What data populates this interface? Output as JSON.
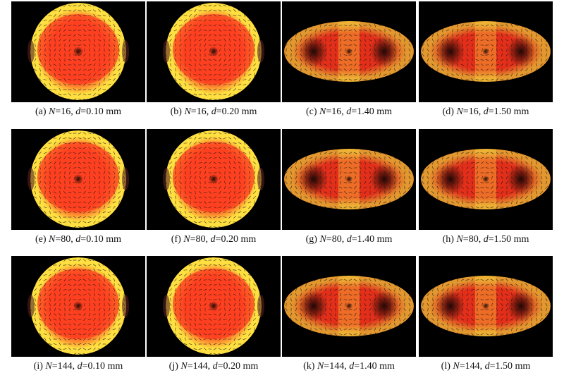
{
  "figure": {
    "rows": [
      {
        "panels": [
          {
            "label": "(a)",
            "N": "16",
            "d": "0.10",
            "unit": "mm",
            "shape": "circle"
          },
          {
            "label": "(b)",
            "N": "16",
            "d": "0.20",
            "unit": "mm",
            "shape": "circle"
          },
          {
            "label": "(c)",
            "N": "16",
            "d": "1.40",
            "unit": "mm",
            "shape": "ellipse"
          },
          {
            "label": "(d)",
            "N": "16",
            "d": "1.50",
            "unit": "mm",
            "shape": "ellipse"
          }
        ]
      },
      {
        "panels": [
          {
            "label": "(e)",
            "N": "80",
            "d": "0.10",
            "unit": "mm",
            "shape": "circle"
          },
          {
            "label": "(f)",
            "N": "80",
            "d": "0.20",
            "unit": "mm",
            "shape": "circle"
          },
          {
            "label": "(g)",
            "N": "80",
            "d": "1.40",
            "unit": "mm",
            "shape": "ellipse"
          },
          {
            "label": "(h)",
            "N": "80",
            "d": "1.50",
            "unit": "mm",
            "shape": "ellipse"
          }
        ]
      },
      {
        "panels": [
          {
            "label": "(i)",
            "N": "144",
            "d": "0.10",
            "unit": "mm",
            "shape": "circle"
          },
          {
            "label": "(j)",
            "N": "144",
            "d": "0.20",
            "unit": "mm",
            "shape": "circle"
          },
          {
            "label": "(k)",
            "N": "144",
            "d": "1.40",
            "unit": "mm",
            "shape": "ellipse"
          },
          {
            "label": "(l)",
            "N": "144",
            "d": "1.50",
            "unit": "mm",
            "shape": "ellipse"
          }
        ]
      }
    ],
    "colors": {
      "background": "#000000",
      "field_low": "#b01010",
      "field_mid": "#ff4020",
      "field_high": "#ffe040",
      "arrow": "#1a1a1a"
    }
  }
}
